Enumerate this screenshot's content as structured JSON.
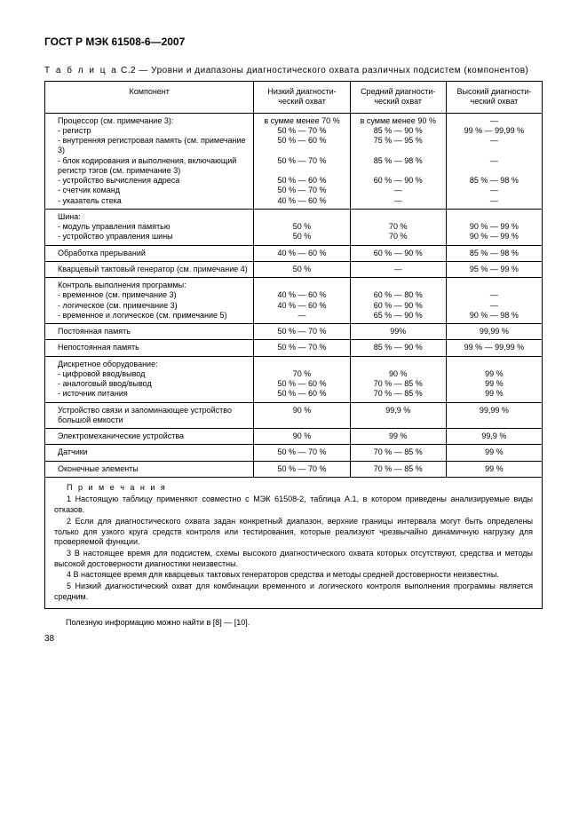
{
  "header": "ГОСТ Р МЭК 61508-6—2007",
  "caption_prefix": "Т а б л и ц а",
  "caption_rest": "  С.2 — Уровни и диапазоны диагностического охвата различных подсистем (компонентов)",
  "columns": {
    "c0": "Компонент",
    "c1": "Низкий диагности-\nческий охват",
    "c2": "Средний диагности-\nческий охват",
    "c3": "Высокий диагности-\nческий охват"
  },
  "rows": [
    {
      "comp": "Процессор (см. примечание 3):\n- регистр\n- внутренняя регистровая память (см. примечание 3)\n- блок кодирования и выполнения, включающий регистр тэгов (см. примечание 3)\n- устройство вычисления адреса\n- счетчик команд\n- указатель стека",
      "low": "в сумме менее 70 %\n50 % — 70 %\n50 % — 60 %\n\n50 % — 70 %\n\n50 % — 60 %\n50 % — 70 %\n40 % — 60 %",
      "med": "в сумме менее 90 %\n85 % — 90 %\n75 % — 95 %\n\n85 % — 98 %\n\n60 % — 90 %\n—\n—",
      "high": "—\n99 % — 99,99 %\n—\n\n—\n\n85 % — 98 %\n—\n—"
    },
    {
      "comp": "Шина:\n- модуль управления памятью\n- устройство управления шины",
      "low": "\n50 %\n50 %",
      "med": "\n70 %\n70 %",
      "high": "\n90 % — 99 %\n90 % — 99 %"
    },
    {
      "comp": "Обработка прерываний",
      "low": "40 % — 60 %",
      "med": "60 % — 90 %",
      "high": "85 % — 98 %"
    },
    {
      "comp": "Кварцевый тактовый генератор (см. примечание 4)",
      "low": "50 %",
      "med": "—",
      "high": "95 % — 99 %"
    },
    {
      "comp": "Контроль выполнения программы:\n- временное (см. примечание 3)\n- логическое (см. примечание 3)\n- временное и логическое (см. примечание 5)",
      "low": "\n40 % — 60 %\n40 % — 60 %\n—",
      "med": "\n60 % — 80 %\n60 % — 90 %\n65 % — 90 %",
      "high": "\n—\n—\n90 % — 98 %"
    },
    {
      "comp": "Постоянная память",
      "low": "50 % — 70 %",
      "med": "99%",
      "high": "99,99 %"
    },
    {
      "comp": "Непостоянная память",
      "low": "50 % — 70 %",
      "med": "85 % — 90 %",
      "high": "99 % — 99,99 %"
    },
    {
      "comp": "Дискретное оборудование:\n- цифровой ввод/вывод\n- аналоговый ввод/вывод\n- источник питания",
      "low": "\n70 %\n50 % — 60 %\n50 % — 60 %",
      "med": "\n90 %\n70 % — 85 %\n70 % — 85 %",
      "high": "\n99 %\n99 %\n99 %"
    },
    {
      "comp": "Устройство связи и запоминающее устройство большой емкости",
      "low": "90 %",
      "med": "99,9 %",
      "high": "99,99 %"
    },
    {
      "comp": "Электромеханические устройства",
      "low": "90 %",
      "med": "99 %",
      "high": "99,9 %"
    },
    {
      "comp": "Датчики",
      "low": "50 % — 70 %",
      "med": "70 % — 85 %",
      "high": "99 %"
    },
    {
      "comp": "Оконечные элементы",
      "low": "50 % — 70 %",
      "med": "70 % — 85 %",
      "high": "99 %"
    }
  ],
  "notes_title": "П р и м е ч а н и я",
  "notes": [
    "1 Настоящую таблицу применяют совместно с МЭК 61508-2, таблица А.1, в котором приведены анализируемые виды отказов.",
    "2 Если для диагностического охвата задан конкретный диапазон, верхние границы интервала могут быть определены только для узкого круга средств контроля или тестирования, которые реализуют чрезвычайно динамичную нагрузку для проверяемой функции.",
    "3 В настоящее время для подсистем, схемы высокого диагностического охвата которых отсутствуют, средства и методы высокой достоверности диагностики неизвестны.",
    "4 В настоящее время для кварцевых тактовых генераторов средства и методы средней достоверности неизвестны.",
    "5 Низкий диагностический охват для комбинации временного и логического контроля выполнения программы является средним."
  ],
  "footer": "Полезную информацию можно найти в [8] — [10].",
  "page": "38"
}
